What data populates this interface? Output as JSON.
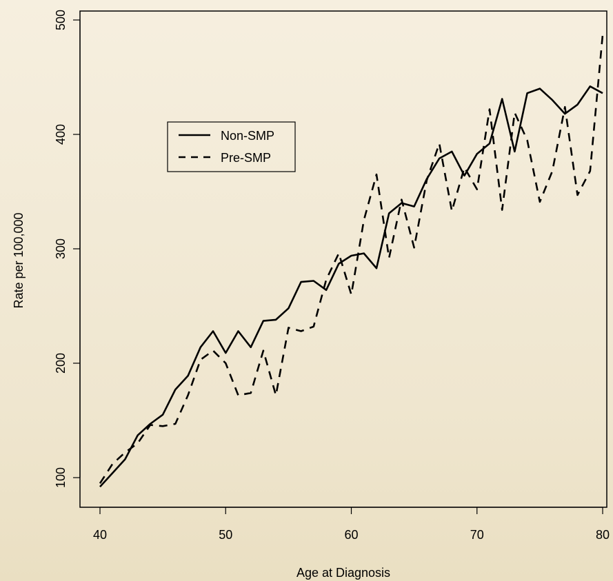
{
  "chart_data": {
    "type": "line",
    "title": "",
    "xlabel": "Age at Diagnosis",
    "ylabel": "Rate per 100,000",
    "xlim": [
      40,
      80
    ],
    "ylim": [
      90,
      500
    ],
    "xticks": [
      40,
      50,
      60,
      70,
      80
    ],
    "yticks": [
      100,
      200,
      300,
      400,
      500
    ],
    "grid": false,
    "legend_position": "upper-left",
    "x": [
      40,
      41,
      42,
      43,
      44,
      45,
      46,
      47,
      48,
      49,
      50,
      51,
      52,
      53,
      54,
      55,
      56,
      57,
      58,
      59,
      60,
      61,
      62,
      63,
      64,
      65,
      66,
      67,
      68,
      69,
      70,
      71,
      72,
      73,
      74,
      75,
      76,
      77,
      78,
      79,
      80
    ],
    "series": [
      {
        "name": "Non-SMP",
        "dash": "solid",
        "values": [
          92,
          104,
          116,
          137,
          147,
          155,
          177,
          189,
          214,
          228,
          209,
          228,
          214,
          237,
          238,
          248,
          271,
          272,
          264,
          287,
          294,
          296,
          283,
          331,
          340,
          337,
          361,
          379,
          385,
          364,
          383,
          392,
          431,
          385,
          436,
          440,
          430,
          418,
          426,
          442,
          436
        ]
      },
      {
        "name": "Pre-SMP",
        "dash": "dashed",
        "values": [
          95,
          112,
          122,
          130,
          146,
          145,
          147,
          172,
          203,
          211,
          200,
          172,
          174,
          211,
          172,
          231,
          228,
          232,
          273,
          296,
          260,
          325,
          365,
          292,
          343,
          301,
          360,
          392,
          333,
          371,
          352,
          422,
          334,
          419,
          395,
          341,
          368,
          424,
          347,
          368,
          487
        ]
      }
    ]
  }
}
